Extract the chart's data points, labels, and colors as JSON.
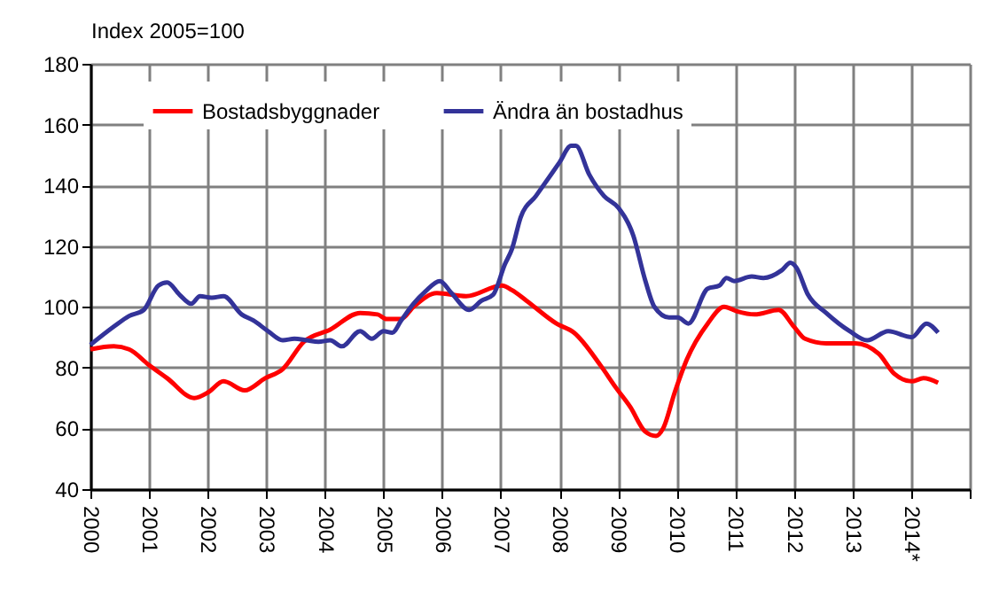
{
  "chart_data": {
    "type": "line",
    "ylabel": "Index  2005=100",
    "xlim": [
      2000,
      2015
    ],
    "xticks": [
      2000,
      2001,
      2002,
      2003,
      2004,
      2005,
      2006,
      2007,
      2008,
      2009,
      2010,
      2011,
      2012,
      2013,
      {
        "value": 2014,
        "label": "2014*"
      },
      {
        "value": 2015,
        "label": null
      }
    ],
    "ylim": [
      40,
      180
    ],
    "yticks": [
      40,
      60,
      80,
      100,
      120,
      140,
      160,
      180
    ],
    "grid": true,
    "legend": "top left",
    "line_style": "solid",
    "marker": "none",
    "series": [
      {
        "name": "Bostadsbyggnader",
        "color": "#ff0000",
        "x": [
          2000,
          2000.4,
          2000.66,
          2000.99,
          2001.31,
          2001.77,
          2002.02,
          2002.27,
          2002.63,
          2002.98,
          2003.28,
          2003.64,
          2004.09,
          2004.6,
          2004.9,
          2005.05,
          2005.3,
          2005.51,
          2005.91,
          2006.41,
          2007.02,
          2007.19,
          2007.44,
          2007.95,
          2008.25,
          2008.71,
          2008.96,
          2009.21,
          2009.46,
          2009.65,
          2009.77,
          2009.97,
          2010.17,
          2010.53,
          2010.81,
          2011.03,
          2011.33,
          2011.74,
          2012,
          2012.19,
          2012.55,
          2013.05,
          2013.45,
          2013.71,
          2014.01,
          2014.21,
          2014.46
        ],
        "values": [
          86,
          87,
          86,
          81,
          76.5,
          70,
          72,
          75.5,
          72.5,
          76.5,
          79.5,
          88.5,
          92.5,
          98,
          97.5,
          96,
          96,
          100,
          104.5,
          103.5,
          107,
          105.5,
          102,
          94.5,
          91.5,
          80.5,
          73.5,
          67,
          59,
          57.5,
          60,
          72,
          82.5,
          94.5,
          100,
          98.5,
          97.5,
          99,
          93.5,
          89.5,
          88,
          88,
          84.5,
          78,
          75.5,
          76.5,
          75
        ]
      },
      {
        "name": "Ändra än bostadhus",
        "color": "#333399",
        "x": [
          2000,
          2000.4,
          2000.66,
          2000.91,
          2001.16,
          2001.31,
          2001.52,
          2001.72,
          2001.87,
          2002.07,
          2002.27,
          2002.58,
          2002.78,
          2003.03,
          2003.28,
          2003.48,
          2003.69,
          2003.89,
          2004.09,
          2004.29,
          2004.6,
          2004.8,
          2005,
          2005.15,
          2005.3,
          2005.51,
          2005.71,
          2005.96,
          2006.16,
          2006.46,
          2006.67,
          2006.87,
          2007.07,
          2007.19,
          2007.34,
          2007.6,
          2008,
          2008.2,
          2008.28,
          2008.51,
          2008.76,
          2009.01,
          2009.26,
          2009.46,
          2009.62,
          2009.87,
          2010.02,
          2010.2,
          2010.53,
          2010.73,
          2010.85,
          2010.98,
          2011.28,
          2011.48,
          2011.79,
          2011.94,
          2012.04,
          2012.24,
          2012.55,
          2012.95,
          2013.25,
          2013.61,
          2014.01,
          2014.26,
          2014.46
        ],
        "values": [
          87.5,
          93.5,
          97,
          99,
          107,
          108,
          104,
          101,
          103.5,
          103,
          103.5,
          97.5,
          95.5,
          92,
          89,
          89.5,
          89,
          88.5,
          89,
          87,
          92,
          89.5,
          92,
          91.5,
          95.5,
          101,
          105,
          108.5,
          104.5,
          99,
          102,
          104,
          114,
          119,
          129.5,
          136.5,
          147.5,
          153,
          153,
          143.5,
          136.5,
          132.5,
          123.5,
          109,
          100,
          96.5,
          96.5,
          94.5,
          106,
          107,
          109.5,
          108.5,
          110,
          109.5,
          112,
          114.5,
          113,
          104,
          98,
          92,
          89,
          92,
          90,
          94.5,
          91.5
        ]
      }
    ]
  }
}
